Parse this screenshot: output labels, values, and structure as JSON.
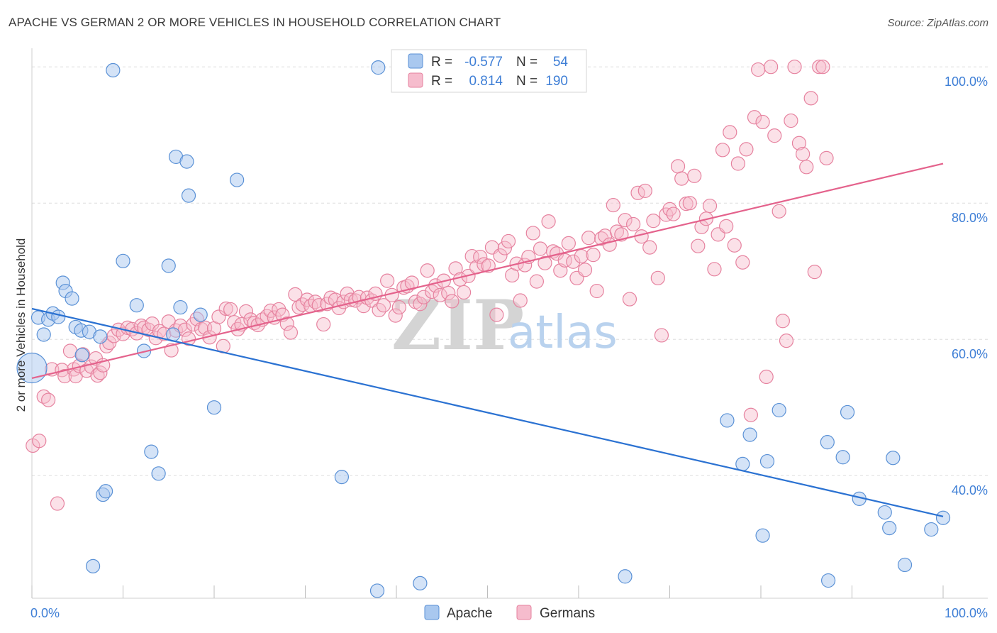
{
  "title": "APACHE VS GERMAN 2 OR MORE VEHICLES IN HOUSEHOLD CORRELATION CHART",
  "source": "Source: ZipAtlas.com",
  "watermark": {
    "zip": "ZIP",
    "atlas": "atlas"
  },
  "colors": {
    "apache_fill": "#a9c8ef",
    "apache_stroke": "#5a91d6",
    "apache_line": "#2b72d2",
    "german_fill": "#f6bccd",
    "german_stroke": "#e6829f",
    "german_line": "#e4628c",
    "grid": "#dedede",
    "axis_text": "#3f7fd6"
  },
  "legend": {
    "r_label": "R =",
    "n_label": "N =",
    "apache": {
      "r": "-0.577",
      "n": "54"
    },
    "german": {
      "r": "0.814",
      "n": "190"
    }
  },
  "bottom_legend": [
    "Apache",
    "Germans"
  ],
  "chart_data": {
    "type": "scatter",
    "title": "APACHE VS GERMAN 2 OR MORE VEHICLES IN HOUSEHOLD CORRELATION CHART",
    "xlabel": "",
    "ylabel": "2 or more Vehicles in Household",
    "xlim": [
      0,
      100
    ],
    "ylim": [
      22,
      102
    ],
    "x_tick_labels": [
      "0.0%",
      "100.0%"
    ],
    "y_ticks": [
      40,
      60,
      80,
      100
    ],
    "y_tick_labels": [
      "40.0%",
      "60.0%",
      "80.0%",
      "100.0%"
    ],
    "grid": true,
    "legend_position": "top-center",
    "series": [
      {
        "name": "Apache",
        "r": -0.577,
        "n": 54,
        "trend": [
          [
            0,
            64.5
          ],
          [
            100,
            34.0
          ]
        ],
        "points": [
          [
            0.0,
            55.8
          ],
          [
            0.7,
            63.2
          ],
          [
            1.3,
            60.7
          ],
          [
            1.8,
            62.9
          ],
          [
            2.3,
            63.8
          ],
          [
            2.9,
            63.3
          ],
          [
            3.4,
            68.3
          ],
          [
            3.7,
            67.1
          ],
          [
            4.4,
            66.0
          ],
          [
            4.8,
            61.8
          ],
          [
            5.4,
            61.3
          ],
          [
            5.5,
            57.7
          ],
          [
            6.3,
            61.1
          ],
          [
            6.7,
            26.7
          ],
          [
            7.5,
            60.4
          ],
          [
            7.8,
            37.2
          ],
          [
            8.1,
            37.7
          ],
          [
            8.9,
            99.5
          ],
          [
            10.0,
            71.5
          ],
          [
            11.5,
            65.0
          ],
          [
            12.3,
            58.3
          ],
          [
            13.1,
            43.5
          ],
          [
            13.9,
            40.3
          ],
          [
            15.0,
            70.8
          ],
          [
            15.5,
            60.7
          ],
          [
            15.8,
            86.8
          ],
          [
            16.3,
            64.7
          ],
          [
            17.0,
            86.1
          ],
          [
            17.2,
            81.1
          ],
          [
            18.5,
            63.6
          ],
          [
            20.0,
            50.0
          ],
          [
            22.5,
            83.4
          ],
          [
            34.0,
            39.8
          ],
          [
            37.9,
            23.1
          ],
          [
            38.0,
            99.9
          ],
          [
            42.6,
            24.2
          ],
          [
            65.1,
            25.2
          ],
          [
            76.3,
            48.1
          ],
          [
            78.0,
            41.7
          ],
          [
            78.8,
            46.0
          ],
          [
            80.2,
            31.2
          ],
          [
            80.7,
            42.1
          ],
          [
            82.0,
            49.6
          ],
          [
            87.3,
            44.9
          ],
          [
            87.4,
            24.6
          ],
          [
            89.0,
            42.7
          ],
          [
            89.5,
            49.3
          ],
          [
            90.8,
            36.6
          ],
          [
            93.6,
            34.6
          ],
          [
            94.1,
            32.3
          ],
          [
            94.5,
            42.6
          ],
          [
            95.8,
            26.9
          ],
          [
            98.7,
            32.1
          ],
          [
            100.0,
            33.8
          ]
        ]
      },
      {
        "name": "Germans",
        "r": 0.814,
        "n": 190,
        "trend": [
          [
            0,
            54.3
          ],
          [
            100,
            85.8
          ]
        ],
        "points": [
          [
            0.1,
            44.4
          ],
          [
            0.8,
            45.1
          ],
          [
            1.3,
            51.6
          ],
          [
            1.8,
            51.1
          ],
          [
            2.2,
            55.6
          ],
          [
            2.8,
            35.9
          ],
          [
            3.3,
            55.5
          ],
          [
            3.6,
            54.6
          ],
          [
            4.2,
            58.3
          ],
          [
            4.6,
            55.6
          ],
          [
            4.8,
            54.6
          ],
          [
            5.2,
            56.1
          ],
          [
            5.6,
            57.8
          ],
          [
            6.0,
            55.4
          ],
          [
            6.5,
            56.0
          ],
          [
            7.0,
            57.2
          ],
          [
            7.2,
            54.7
          ],
          [
            7.5,
            55.1
          ],
          [
            7.8,
            56.2
          ],
          [
            8.2,
            59.0
          ],
          [
            8.5,
            59.5
          ],
          [
            9.0,
            60.5
          ],
          [
            9.5,
            61.4
          ],
          [
            10.0,
            60.8
          ],
          [
            10.5,
            61.7
          ],
          [
            11.0,
            61.5
          ],
          [
            11.5,
            60.9
          ],
          [
            12.0,
            62.0
          ],
          [
            12.3,
            61.7
          ],
          [
            12.8,
            61.4
          ],
          [
            13.2,
            62.3
          ],
          [
            13.6,
            60.2
          ],
          [
            14.0,
            61.2
          ],
          [
            14.5,
            60.8
          ],
          [
            15.0,
            62.6
          ],
          [
            15.3,
            58.4
          ],
          [
            15.8,
            61.3
          ],
          [
            16.3,
            62.0
          ],
          [
            16.8,
            61.4
          ],
          [
            17.2,
            60.1
          ],
          [
            17.7,
            62.2
          ],
          [
            18.1,
            63.0
          ],
          [
            18.6,
            61.5
          ],
          [
            19.0,
            61.7
          ],
          [
            19.5,
            60.3
          ],
          [
            20.0,
            61.6
          ],
          [
            20.5,
            63.3
          ],
          [
            21.0,
            59.0
          ],
          [
            21.3,
            64.5
          ],
          [
            21.8,
            64.4
          ],
          [
            22.2,
            62.5
          ],
          [
            22.6,
            61.5
          ],
          [
            23.0,
            62.2
          ],
          [
            23.5,
            64.1
          ],
          [
            24.0,
            62.9
          ],
          [
            24.4,
            62.4
          ],
          [
            24.8,
            62.1
          ],
          [
            25.3,
            62.9
          ],
          [
            25.8,
            63.4
          ],
          [
            26.2,
            64.2
          ],
          [
            26.6,
            63.2
          ],
          [
            27.1,
            64.4
          ],
          [
            27.5,
            63.6
          ],
          [
            28.0,
            62.3
          ],
          [
            28.4,
            61.0
          ],
          [
            28.9,
            66.6
          ],
          [
            29.3,
            64.7
          ],
          [
            29.7,
            65.1
          ],
          [
            30.2,
            65.8
          ],
          [
            30.6,
            64.9
          ],
          [
            31.1,
            65.5
          ],
          [
            31.5,
            65.0
          ],
          [
            32.0,
            62.2
          ],
          [
            32.4,
            65.2
          ],
          [
            32.8,
            66.1
          ],
          [
            33.3,
            65.8
          ],
          [
            33.7,
            64.6
          ],
          [
            34.2,
            65.5
          ],
          [
            34.6,
            66.7
          ],
          [
            35.0,
            65.8
          ],
          [
            35.5,
            65.7
          ],
          [
            35.9,
            66.2
          ],
          [
            36.4,
            64.9
          ],
          [
            36.8,
            66.1
          ],
          [
            37.3,
            65.7
          ],
          [
            37.7,
            66.7
          ],
          [
            38.1,
            64.3
          ],
          [
            38.6,
            65.0
          ],
          [
            39.0,
            68.6
          ],
          [
            39.5,
            66.5
          ],
          [
            39.9,
            63.5
          ],
          [
            40.3,
            64.7
          ],
          [
            40.8,
            67.6
          ],
          [
            41.2,
            67.8
          ],
          [
            41.7,
            68.3
          ],
          [
            42.1,
            65.5
          ],
          [
            42.6,
            65.2
          ],
          [
            43.0,
            66.2
          ],
          [
            43.4,
            70.1
          ],
          [
            43.9,
            67.0
          ],
          [
            44.3,
            67.9
          ],
          [
            44.8,
            66.5
          ],
          [
            45.2,
            68.6
          ],
          [
            45.7,
            66.8
          ],
          [
            46.1,
            65.6
          ],
          [
            46.5,
            70.4
          ],
          [
            47.0,
            68.8
          ],
          [
            47.4,
            66.9
          ],
          [
            47.9,
            69.3
          ],
          [
            48.3,
            72.2
          ],
          [
            48.8,
            70.6
          ],
          [
            49.2,
            72.1
          ],
          [
            49.6,
            71.0
          ],
          [
            50.1,
            70.8
          ],
          [
            50.5,
            73.5
          ],
          [
            51.0,
            63.6
          ],
          [
            51.4,
            72.3
          ],
          [
            51.9,
            73.4
          ],
          [
            52.3,
            74.4
          ],
          [
            52.7,
            69.4
          ],
          [
            53.2,
            71.1
          ],
          [
            53.6,
            65.7
          ],
          [
            54.1,
            70.9
          ],
          [
            54.5,
            72.1
          ],
          [
            55.0,
            75.6
          ],
          [
            55.4,
            68.5
          ],
          [
            55.8,
            73.3
          ],
          [
            56.3,
            71.2
          ],
          [
            56.7,
            77.3
          ],
          [
            57.2,
            72.9
          ],
          [
            57.6,
            72.6
          ],
          [
            58.0,
            70.1
          ],
          [
            58.5,
            71.6
          ],
          [
            58.9,
            74.1
          ],
          [
            59.4,
            71.4
          ],
          [
            59.8,
            69.0
          ],
          [
            60.3,
            72.2
          ],
          [
            60.7,
            70.2
          ],
          [
            61.1,
            74.9
          ],
          [
            61.6,
            72.4
          ],
          [
            62.0,
            67.1
          ],
          [
            62.5,
            74.8
          ],
          [
            62.9,
            75.2
          ],
          [
            63.4,
            73.9
          ],
          [
            63.8,
            79.7
          ],
          [
            64.2,
            75.8
          ],
          [
            64.7,
            75.4
          ],
          [
            65.1,
            77.5
          ],
          [
            65.6,
            65.9
          ],
          [
            66.0,
            76.9
          ],
          [
            66.5,
            81.5
          ],
          [
            66.9,
            75.1
          ],
          [
            67.3,
            81.8
          ],
          [
            67.8,
            73.5
          ],
          [
            68.2,
            77.4
          ],
          [
            68.7,
            69.0
          ],
          [
            69.1,
            60.6
          ],
          [
            69.6,
            78.3
          ],
          [
            70.0,
            79.1
          ],
          [
            70.4,
            78.4
          ],
          [
            70.9,
            85.4
          ],
          [
            71.3,
            83.6
          ],
          [
            71.8,
            79.9
          ],
          [
            72.2,
            80.0
          ],
          [
            72.7,
            84.0
          ],
          [
            73.1,
            73.7
          ],
          [
            73.5,
            76.5
          ],
          [
            74.0,
            77.7
          ],
          [
            74.4,
            79.6
          ],
          [
            74.9,
            70.3
          ],
          [
            75.3,
            75.4
          ],
          [
            75.8,
            87.8
          ],
          [
            76.2,
            76.6
          ],
          [
            76.6,
            90.4
          ],
          [
            77.1,
            73.8
          ],
          [
            77.5,
            85.8
          ],
          [
            78.0,
            71.3
          ],
          [
            78.4,
            87.9
          ],
          [
            78.9,
            48.9
          ],
          [
            79.3,
            92.6
          ],
          [
            79.7,
            99.6
          ],
          [
            80.2,
            91.9
          ],
          [
            80.6,
            54.5
          ],
          [
            81.1,
            100.0
          ],
          [
            81.5,
            89.9
          ],
          [
            82.0,
            78.8
          ],
          [
            82.4,
            62.7
          ],
          [
            82.8,
            59.8
          ],
          [
            83.3,
            92.1
          ],
          [
            83.7,
            100.0
          ],
          [
            84.2,
            88.8
          ],
          [
            84.6,
            87.2
          ],
          [
            85.0,
            85.3
          ],
          [
            85.5,
            95.4
          ],
          [
            85.9,
            69.9
          ],
          [
            86.4,
            100.0
          ],
          [
            86.8,
            100.0
          ],
          [
            87.2,
            86.6
          ]
        ]
      }
    ]
  }
}
